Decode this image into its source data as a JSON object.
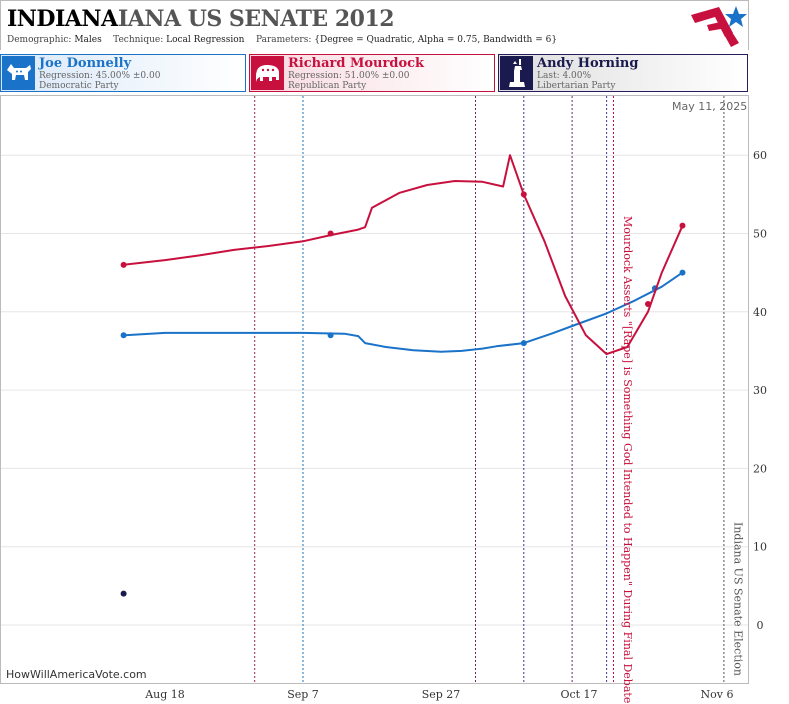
{
  "header": {
    "title_main": "INDIANA",
    "title_rest": "IANA US SENATE 2012",
    "demographic_label": "Demographic:",
    "demographic_value": "Males",
    "technique_label": "Technique:",
    "technique_value": "Local Regression",
    "parameters_label": "Parameters:",
    "parameters_value": "{Degree = Quadratic, Alpha = 0.75, Bandwidth = 6}"
  },
  "candidates": [
    {
      "name": "Joe Donnelly",
      "stat": "Regression: 45.00% ±0.00",
      "party": "Democratic Party",
      "color": "#1a73c8"
    },
    {
      "name": "Richard Mourdock",
      "stat": "Regression: 51.00% ±0.00",
      "party": "Republican Party",
      "color": "#c8103e"
    },
    {
      "name": "Andy Horning",
      "stat": "Last: 4.00%",
      "party": "Libertarian Party",
      "color": "#1a1a4e"
    }
  ],
  "footer": {
    "site": "HowWillAmericaVote.com",
    "date": "May 11, 2025"
  },
  "chart_data": {
    "type": "line",
    "x_tick_labels": [
      "Aug 18",
      "Sep 7",
      "Sep 27",
      "Oct 17",
      "Nov 6"
    ],
    "x_tick_days": [
      0,
      20,
      40,
      60,
      80
    ],
    "y_ticks": [
      0,
      10,
      20,
      30,
      40,
      50,
      60
    ],
    "ylim": [
      -5,
      65
    ],
    "series": [
      {
        "name": "Joe Donnelly",
        "color": "#1a73c8",
        "line": [
          [
            -6,
            37
          ],
          [
            0,
            37.3
          ],
          [
            10,
            37.3
          ],
          [
            20,
            37.3
          ],
          [
            26,
            37.2
          ],
          [
            28,
            36.9
          ],
          [
            29,
            36
          ],
          [
            32,
            35.5
          ],
          [
            36,
            35.1
          ],
          [
            40,
            34.9
          ],
          [
            43,
            35
          ],
          [
            46,
            35.3
          ],
          [
            48,
            35.6
          ],
          [
            52,
            36
          ],
          [
            56,
            37.2
          ],
          [
            60,
            38.5
          ],
          [
            64,
            39.8
          ],
          [
            68,
            41.4
          ],
          [
            72,
            43.2
          ],
          [
            75,
            45
          ]
        ],
        "points": [
          [
            -6,
            37
          ],
          [
            24,
            37
          ],
          [
            52,
            36
          ],
          [
            71,
            43
          ],
          [
            75,
            45
          ]
        ]
      },
      {
        "name": "Richard Mourdock",
        "color": "#c8103e",
        "line": [
          [
            -6,
            46
          ],
          [
            0,
            46.6
          ],
          [
            5,
            47.2
          ],
          [
            10,
            47.9
          ],
          [
            15,
            48.4
          ],
          [
            20,
            49
          ],
          [
            24,
            49.8
          ],
          [
            28,
            50.5
          ],
          [
            29,
            50.8
          ],
          [
            30,
            53.3
          ],
          [
            34,
            55.2
          ],
          [
            38,
            56.2
          ],
          [
            42,
            56.7
          ],
          [
            46,
            56.6
          ],
          [
            49,
            56
          ],
          [
            50,
            60
          ],
          [
            52,
            55
          ],
          [
            55,
            49
          ],
          [
            58,
            42
          ],
          [
            61,
            37
          ],
          [
            64,
            34.6
          ],
          [
            67,
            35.5
          ],
          [
            70,
            40
          ],
          [
            72,
            45
          ],
          [
            75,
            51
          ]
        ],
        "points": [
          [
            -6,
            46
          ],
          [
            24,
            50
          ],
          [
            52,
            55
          ],
          [
            70,
            41
          ],
          [
            75,
            51
          ]
        ]
      },
      {
        "name": "Andy Horning",
        "color": "#1a1a4e",
        "line": [],
        "points": [
          [
            -6,
            4
          ]
        ]
      }
    ],
    "vlines": [
      {
        "day": 13,
        "color": "#a0205a"
      },
      {
        "day": 20,
        "color": "#1a73c8"
      },
      {
        "day": 45,
        "color": "#6a2a6a"
      },
      {
        "day": 52,
        "color": "#3a3a8a"
      },
      {
        "day": 59,
        "color": "#6a2a6a"
      },
      {
        "day": 64,
        "color": "#3a3a8a"
      },
      {
        "day": 65,
        "color": "#c8103e"
      },
      {
        "day": 81,
        "color": "#555555"
      }
    ],
    "annotations": [
      {
        "day": 66.5,
        "text": "Mourdock Asserts \"[Rape] is Something God Intended to Happen\" During Final Debate",
        "color": "#c8103e"
      },
      {
        "day": 82.5,
        "text": "Indiana US Senate Election",
        "color": "#555555"
      }
    ]
  }
}
